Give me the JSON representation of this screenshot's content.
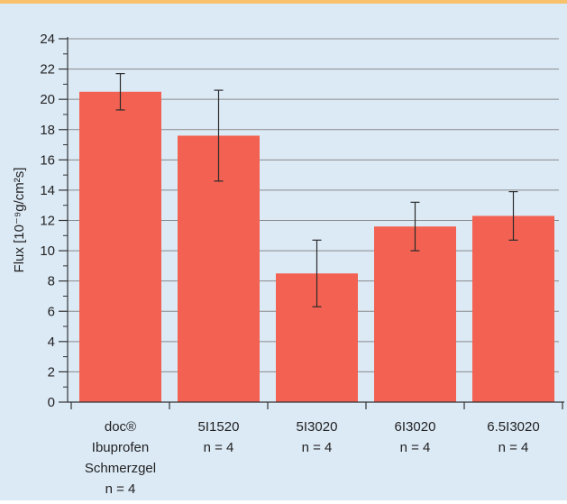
{
  "chart_data": {
    "type": "bar",
    "ylabel": "Flux [10⁻⁹g/cm²s]",
    "ylim": [
      0,
      24
    ],
    "yticks": [
      "0",
      "2",
      "4",
      "6",
      "8",
      "10",
      "12",
      "14",
      "16",
      "18",
      "20",
      "22",
      "24"
    ],
    "grid": true,
    "categories": [
      [
        "doc®",
        "Ibuprofen",
        "Schmerzgel",
        "n = 4"
      ],
      [
        "5I1520",
        "n = 4"
      ],
      [
        "5I3020",
        "n = 4"
      ],
      [
        "6I3020",
        "n = 4"
      ],
      [
        "6.5I3020",
        "n = 4"
      ]
    ],
    "series": [
      {
        "values": [
          20.5,
          17.6,
          8.5,
          11.6,
          12.3
        ],
        "error_low": [
          19.3,
          14.6,
          6.3,
          10.0,
          10.7
        ],
        "error_high": [
          21.7,
          20.6,
          10.7,
          13.2,
          13.9
        ]
      }
    ],
    "colors": {
      "bar": "#f26151",
      "background": "#dceaf6",
      "top_border": "#f7c26b",
      "grid": "#8a8a8a",
      "axis": "#333333"
    }
  }
}
